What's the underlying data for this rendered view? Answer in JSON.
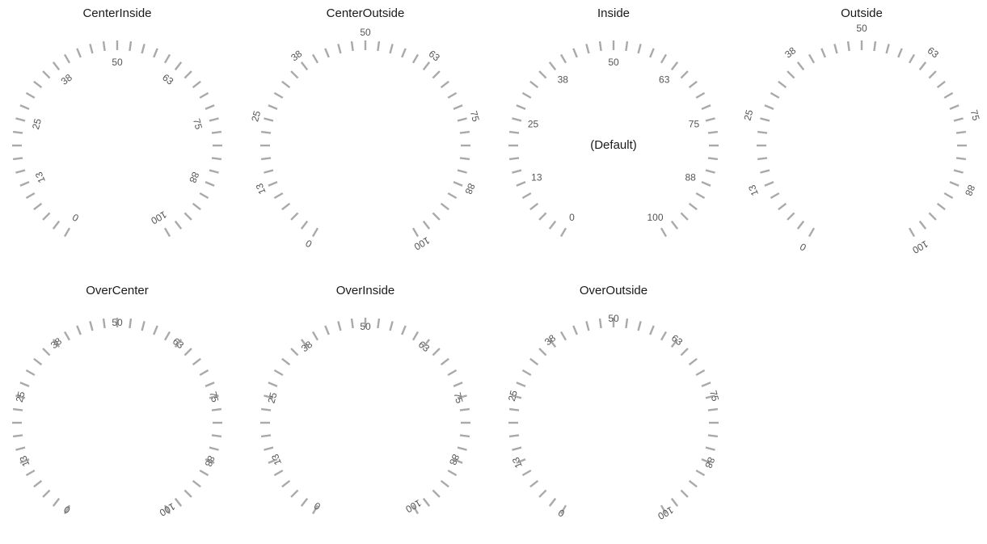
{
  "gauges": [
    {
      "title": "CenterInside",
      "mode": "CenterInside",
      "center_text": ""
    },
    {
      "title": "CenterOutside",
      "mode": "CenterOutside",
      "center_text": ""
    },
    {
      "title": "Inside",
      "mode": "Inside",
      "center_text": "(Default)"
    },
    {
      "title": "Outside",
      "mode": "Outside",
      "center_text": ""
    },
    {
      "title": "OverCenter",
      "mode": "OverCenter",
      "center_text": ""
    },
    {
      "title": "OverInside",
      "mode": "OverInside",
      "center_text": ""
    },
    {
      "title": "OverOutside",
      "mode": "OverOutside",
      "center_text": ""
    }
  ],
  "scale": {
    "minimum": 0,
    "maximum": 100,
    "start_angle_deg": -150,
    "sweep_angle_deg": 300,
    "tick_count": 41,
    "labels": [
      "0",
      "13",
      "25",
      "38",
      "50",
      "63",
      "75",
      "88",
      "100"
    ],
    "tick_color": "#a9a9a9",
    "label_color": "#555555"
  }
}
